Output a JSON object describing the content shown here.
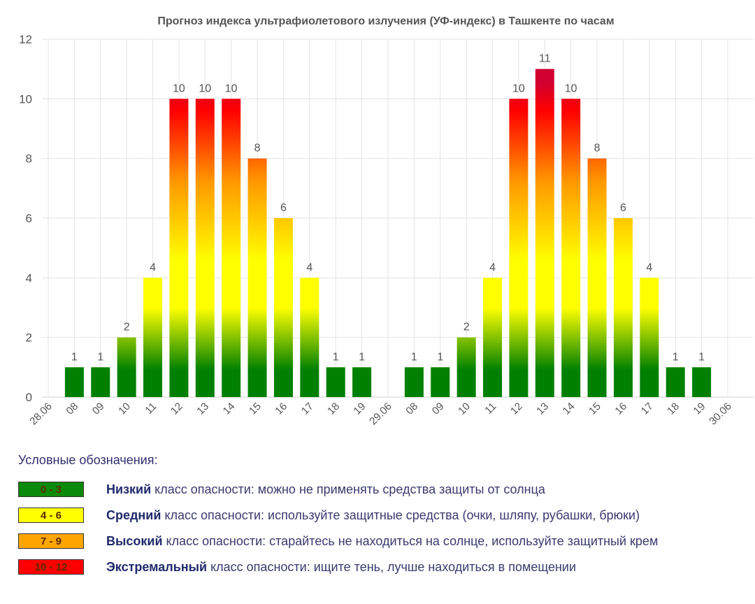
{
  "chart_data": {
    "type": "bar",
    "title": "Прогноз индекса ультрафиолетового излучения (УФ-индекс) в Ташкенте по часам",
    "categories": [
      "28.06",
      "08",
      "09",
      "10",
      "11",
      "12",
      "13",
      "14",
      "15",
      "16",
      "17",
      "18",
      "19",
      "29.06",
      "08",
      "09",
      "10",
      "11",
      "12",
      "13",
      "14",
      "15",
      "16",
      "17",
      "18",
      "19",
      "30.06"
    ],
    "values": [
      null,
      1,
      1,
      2,
      4,
      10,
      10,
      10,
      8,
      6,
      4,
      1,
      1,
      null,
      1,
      1,
      2,
      4,
      10,
      11,
      10,
      8,
      6,
      4,
      1,
      1,
      null
    ],
    "ylim": [
      0,
      12
    ],
    "yticks": [
      "0",
      "2",
      "4",
      "6",
      "8",
      "10",
      "12"
    ],
    "grid": true,
    "colors": {
      "green": "#008000",
      "yellow": "#ffff00",
      "orange": "#ff9900",
      "red": "#ff0000",
      "crimson": "#d00030"
    }
  },
  "legend": {
    "title": "Условные обозначения:",
    "items": [
      {
        "range": "0 - 3",
        "color": "#0a8a0a",
        "level": "Низкий",
        "text": " класс опасности: можно не применять средства защиты от солнца"
      },
      {
        "range": "4 - 6",
        "color": "#ffff00",
        "level": "Средний",
        "text": " класс опасности: используйте защитные средства (очки, шляпу, рубашки, брюки)"
      },
      {
        "range": "7 - 9",
        "color": "#ffa500",
        "level": "Высокий",
        "text": " класс опасности: старайтесь не находиться на солнце, используйте защитный крем"
      },
      {
        "range": "10 - 12",
        "color": "#ff0000",
        "level": "Экстремальный",
        "text": " класс опасности: ищите тень, лучше находиться в помещении"
      }
    ]
  }
}
